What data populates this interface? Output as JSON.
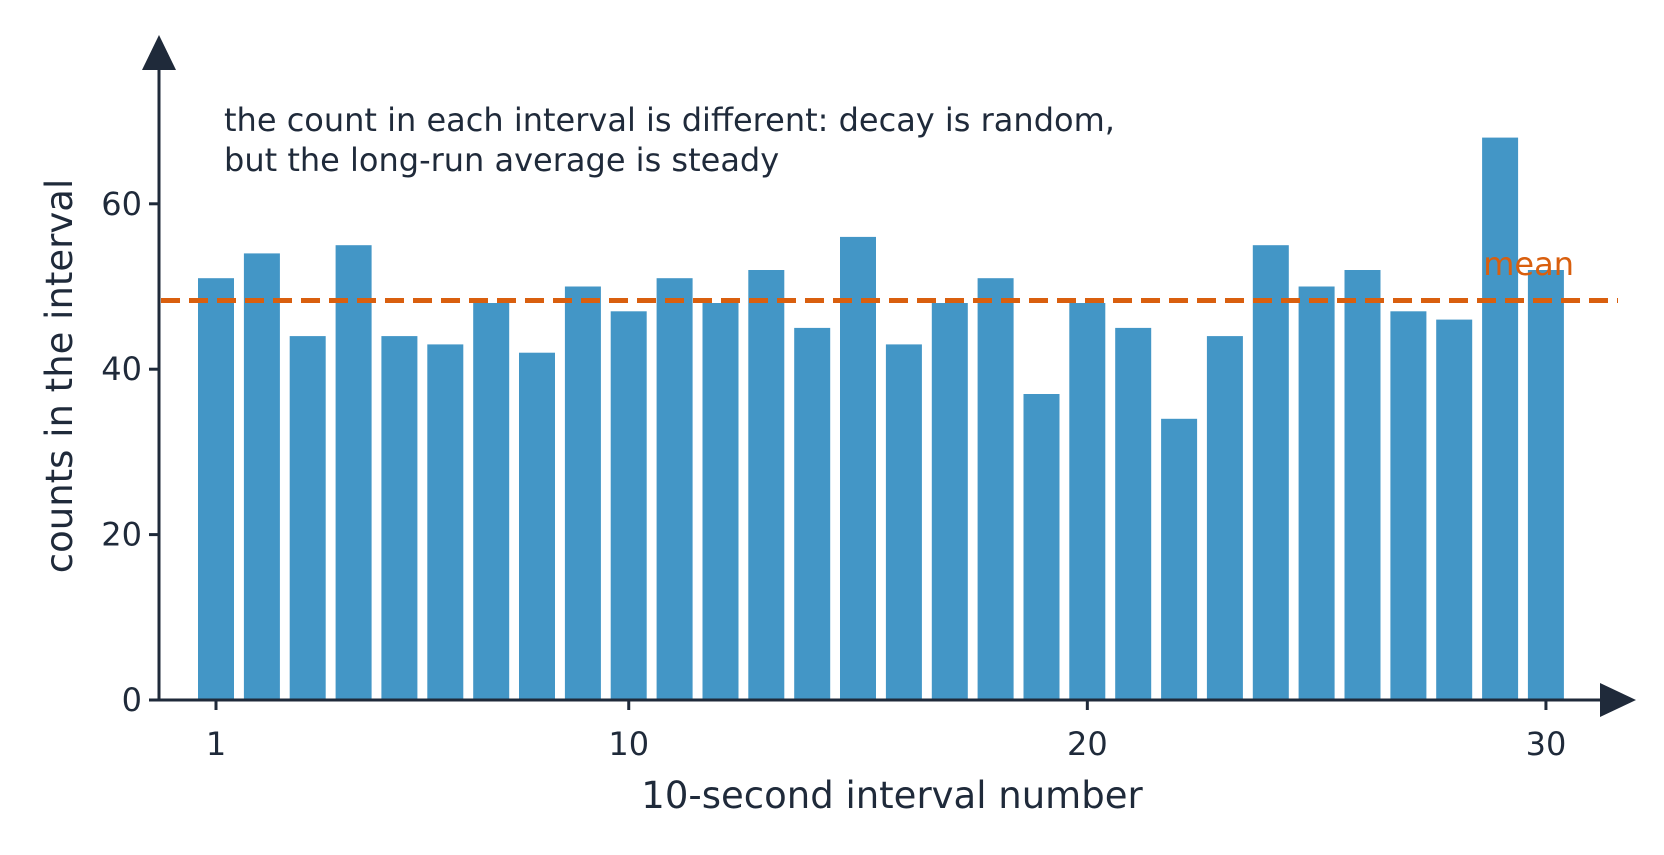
{
  "chart_data": {
    "type": "bar",
    "title": "",
    "xlabel": "10-second interval number",
    "ylabel": "counts in the interval",
    "x": [
      1,
      2,
      3,
      4,
      5,
      6,
      7,
      8,
      9,
      10,
      11,
      12,
      13,
      14,
      15,
      16,
      17,
      18,
      19,
      20,
      21,
      22,
      23,
      24,
      25,
      26,
      27,
      28,
      29,
      30
    ],
    "values": [
      51,
      54,
      44,
      55,
      44,
      43,
      48,
      42,
      50,
      47,
      51,
      48,
      52,
      45,
      56,
      43,
      48,
      51,
      37,
      48,
      45,
      34,
      44,
      55,
      50,
      52,
      47,
      46,
      68,
      52
    ],
    "xticks": [
      1,
      10,
      20,
      30
    ],
    "yticks": [
      0,
      20,
      40,
      60
    ],
    "ylim": [
      0,
      78
    ],
    "xlim": [
      0,
      31.5
    ],
    "grid": false,
    "mean": 48.3,
    "mean_label": "mean",
    "annotation_lines": [
      "the count in each interval is different: decay is random,",
      "but the long-run average is steady"
    ]
  },
  "colors": {
    "bar": "#4396c6",
    "mean_line": "#d95f0e",
    "axis": "#1f2a3a",
    "text": "#1f2a3a"
  }
}
